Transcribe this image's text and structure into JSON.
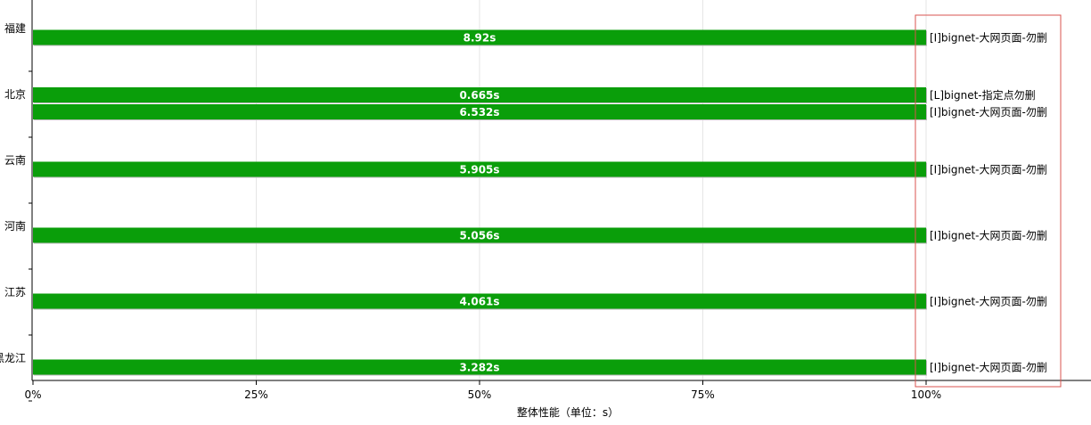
{
  "chart_data": {
    "type": "bar",
    "orientation": "horizontal",
    "title": "",
    "xlabel": "整体性能（单位：s）",
    "x_ticks": [
      "0%",
      "25%",
      "50%",
      "75%",
      "100%"
    ],
    "xlim": [
      0,
      100
    ],
    "grid": true,
    "categories": [
      "福建",
      "北京",
      "云南",
      "河南",
      "江苏",
      "黑龙江"
    ],
    "bars": [
      {
        "category": "福建",
        "value": 100,
        "label": "8.92s",
        "series": "[I]bignet-大网页面-勿删"
      },
      {
        "category": "北京",
        "value": 100,
        "label": "0.665s",
        "series": "[L]bignet-指定点勿删"
      },
      {
        "category": "北京",
        "value": 100,
        "label": "6.532s",
        "series": "[I]bignet-大网页面-勿删"
      },
      {
        "category": "云南",
        "value": 100,
        "label": "5.905s",
        "series": "[I]bignet-大网页面-勿删"
      },
      {
        "category": "河南",
        "value": 100,
        "label": "5.056s",
        "series": "[I]bignet-大网页面-勿删"
      },
      {
        "category": "江苏",
        "value": 100,
        "label": "4.061s",
        "series": "[I]bignet-大网页面-勿删"
      },
      {
        "category": "黑龙江",
        "value": 100,
        "label": "3.282s",
        "series": "[I]bignet-大网页面-勿删"
      }
    ],
    "bar_color": "#0a9e0a",
    "highlight_color": "#d9534f"
  }
}
